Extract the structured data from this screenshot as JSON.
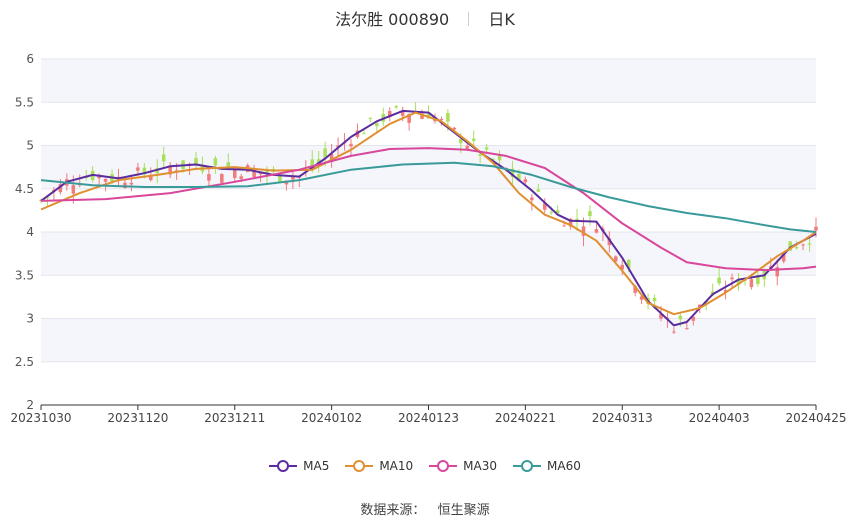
{
  "header": {
    "name_code": "法尔胜 000890",
    "period": "日K"
  },
  "legend": [
    {
      "label": "MA5",
      "color": "#5b2ca0"
    },
    {
      "label": "MA10",
      "color": "#e09030"
    },
    {
      "label": "MA30",
      "color": "#d8479b"
    },
    {
      "label": "MA60",
      "color": "#3a9a9a"
    }
  ],
  "source": {
    "label": "数据来源：",
    "value": "恒生聚源"
  },
  "colors": {
    "up": "#f07c7c",
    "down": "#a8e05a",
    "band": "#f4f6fb",
    "grid": "#e3e6ee",
    "axis": "#333333"
  },
  "chart_data": {
    "type": "candlestick",
    "y_axis": {
      "min": 2,
      "max": 6,
      "ticks": [
        2,
        2.5,
        3,
        3.5,
        4,
        4.5,
        5,
        5.5,
        6
      ]
    },
    "x_axis": {
      "count": 121,
      "labels": [
        "20231030",
        "20231120",
        "20231211",
        "20240102",
        "20240123",
        "20240221",
        "20240313",
        "20240403",
        "20240425"
      ],
      "label_index": [
        0,
        15,
        30,
        45,
        60,
        75,
        90,
        105,
        120
      ]
    },
    "series": [
      {
        "name": "MA5",
        "color": "#5b2ca0",
        "points": [
          [
            0,
            4.36
          ],
          [
            4,
            4.58
          ],
          [
            8,
            4.66
          ],
          [
            12,
            4.62
          ],
          [
            16,
            4.68
          ],
          [
            20,
            4.76
          ],
          [
            24,
            4.78
          ],
          [
            28,
            4.73
          ],
          [
            32,
            4.72
          ],
          [
            36,
            4.66
          ],
          [
            40,
            4.64
          ],
          [
            44,
            4.85
          ],
          [
            48,
            5.1
          ],
          [
            52,
            5.28
          ],
          [
            56,
            5.4
          ],
          [
            60,
            5.38
          ],
          [
            64,
            5.15
          ],
          [
            68,
            4.92
          ],
          [
            72,
            4.72
          ],
          [
            76,
            4.48
          ],
          [
            80,
            4.2
          ],
          [
            82,
            4.13
          ],
          [
            86,
            4.12
          ],
          [
            90,
            3.7
          ],
          [
            94,
            3.2
          ],
          [
            98,
            2.92
          ],
          [
            100,
            2.96
          ],
          [
            104,
            3.28
          ],
          [
            108,
            3.45
          ],
          [
            112,
            3.5
          ],
          [
            116,
            3.82
          ],
          [
            120,
            3.98
          ]
        ]
      },
      {
        "name": "MA10",
        "color": "#e09030",
        "points": [
          [
            0,
            4.26
          ],
          [
            6,
            4.45
          ],
          [
            12,
            4.6
          ],
          [
            18,
            4.66
          ],
          [
            24,
            4.73
          ],
          [
            30,
            4.75
          ],
          [
            36,
            4.71
          ],
          [
            42,
            4.72
          ],
          [
            48,
            4.95
          ],
          [
            54,
            5.25
          ],
          [
            58,
            5.38
          ],
          [
            62,
            5.28
          ],
          [
            66,
            5.05
          ],
          [
            70,
            4.8
          ],
          [
            74,
            4.45
          ],
          [
            78,
            4.2
          ],
          [
            82,
            4.08
          ],
          [
            86,
            3.9
          ],
          [
            90,
            3.55
          ],
          [
            94,
            3.18
          ],
          [
            98,
            3.05
          ],
          [
            102,
            3.12
          ],
          [
            106,
            3.3
          ],
          [
            110,
            3.5
          ],
          [
            114,
            3.72
          ],
          [
            118,
            3.9
          ],
          [
            120,
            4.0
          ]
        ]
      },
      {
        "name": "MA30",
        "color": "#d8479b",
        "points": [
          [
            0,
            4.36
          ],
          [
            10,
            4.38
          ],
          [
            20,
            4.45
          ],
          [
            30,
            4.58
          ],
          [
            40,
            4.72
          ],
          [
            48,
            4.88
          ],
          [
            54,
            4.96
          ],
          [
            60,
            4.97
          ],
          [
            66,
            4.95
          ],
          [
            72,
            4.88
          ],
          [
            78,
            4.74
          ],
          [
            84,
            4.45
          ],
          [
            90,
            4.1
          ],
          [
            96,
            3.82
          ],
          [
            100,
            3.65
          ],
          [
            106,
            3.58
          ],
          [
            112,
            3.56
          ],
          [
            118,
            3.58
          ],
          [
            120,
            3.6
          ]
        ]
      },
      {
        "name": "MA60",
        "color": "#3a9a9a",
        "points": [
          [
            0,
            4.6
          ],
          [
            8,
            4.54
          ],
          [
            16,
            4.52
          ],
          [
            24,
            4.52
          ],
          [
            32,
            4.53
          ],
          [
            40,
            4.6
          ],
          [
            48,
            4.72
          ],
          [
            56,
            4.78
          ],
          [
            64,
            4.8
          ],
          [
            70,
            4.76
          ],
          [
            76,
            4.66
          ],
          [
            82,
            4.52
          ],
          [
            88,
            4.4
          ],
          [
            94,
            4.3
          ],
          [
            100,
            4.22
          ],
          [
            106,
            4.16
          ],
          [
            112,
            4.08
          ],
          [
            116,
            4.03
          ],
          [
            120,
            4.0
          ]
        ]
      }
    ]
  }
}
